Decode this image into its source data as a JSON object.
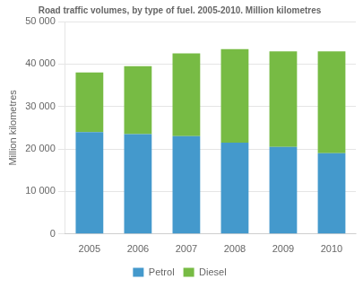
{
  "chart_data": {
    "type": "bar",
    "title": "Road traffic volumes, by type of fuel. 2005-2010. Million kilometres",
    "ylabel": "Million kilometres",
    "categories": [
      "2005",
      "2006",
      "2007",
      "2008",
      "2009",
      "2010"
    ],
    "series": [
      {
        "name": "Petrol",
        "color": "#4499cc",
        "values": [
          24000,
          23500,
          23000,
          21500,
          20500,
          19000
        ]
      },
      {
        "name": "Diesel",
        "color": "#77bb44",
        "values": [
          14000,
          16000,
          19500,
          22000,
          22500,
          24000
        ]
      }
    ],
    "ylim": [
      0,
      50000
    ],
    "yticks": [
      0,
      {
        "value": 10000,
        "label": "10 000"
      },
      {
        "value": 20000,
        "label": "20 000"
      },
      {
        "value": 30000,
        "label": "30 000"
      },
      {
        "value": 40000,
        "label": "40 000"
      },
      {
        "value": 50000,
        "label": "50 000"
      }
    ],
    "stacked": true,
    "grid": true,
    "legend": "bottom"
  }
}
